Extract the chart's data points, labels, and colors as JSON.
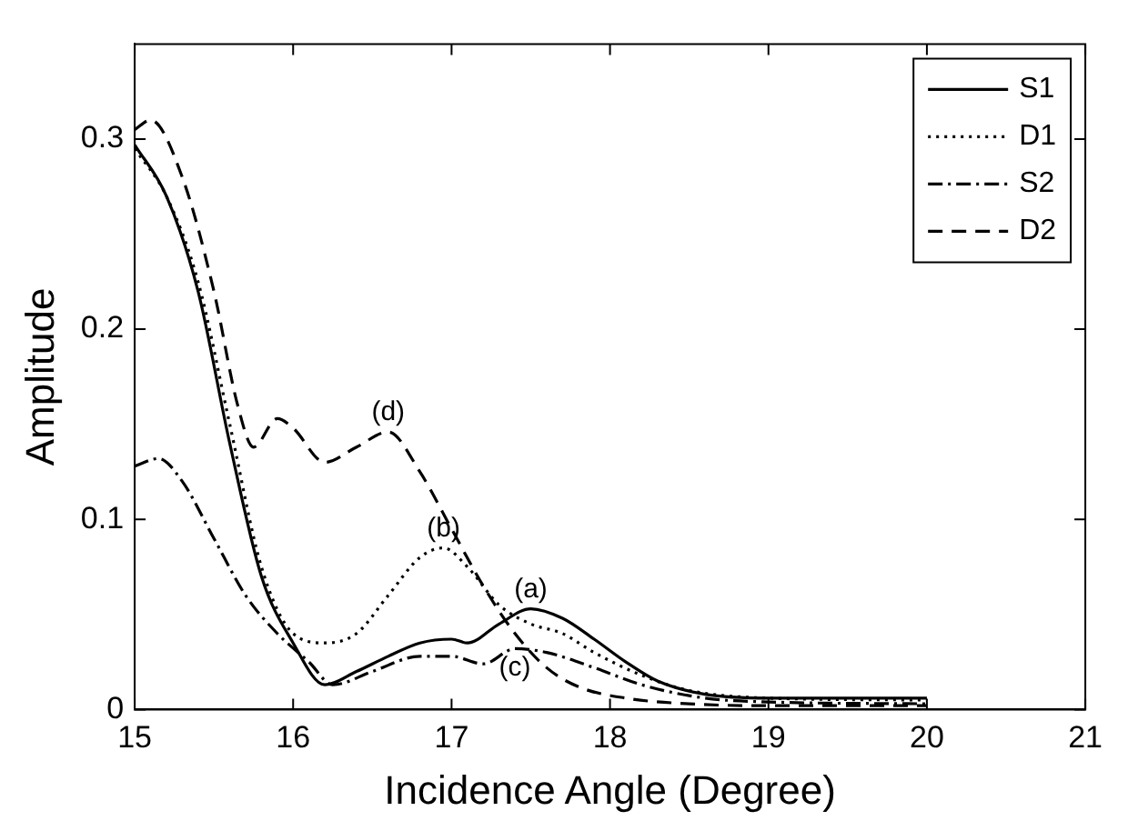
{
  "chart_data": {
    "type": "line",
    "xlabel": "Incidence Angle (Degree)",
    "ylabel": "Amplitude",
    "xlim": [
      15,
      21
    ],
    "xticks": [
      15,
      16,
      17,
      18,
      19,
      20,
      21
    ],
    "ylim": [
      0,
      0.35
    ],
    "yticks": [
      0,
      0.1,
      0.2,
      0.3
    ],
    "grid": false,
    "legend": "top right",
    "marker": "none",
    "series": [
      {
        "name": "S1",
        "color": "#000000",
        "line_style": "solid",
        "x": [
          15,
          15.2,
          15.4,
          15.6,
          15.8,
          16.0,
          16.2,
          16.4,
          16.6,
          16.8,
          17.0,
          17.1,
          17.3,
          17.5,
          17.7,
          17.9,
          18.1,
          18.3,
          18.6,
          19,
          20
        ],
        "values": [
          0.297,
          0.27,
          0.22,
          0.14,
          0.07,
          0.035,
          0.013,
          0.02,
          0.028,
          0.035,
          0.037,
          0.035,
          0.045,
          0.053,
          0.048,
          0.037,
          0.025,
          0.015,
          0.008,
          0.006,
          0.006
        ]
      },
      {
        "name": "D1",
        "color": "#000000",
        "line_style": "dotted",
        "x": [
          15,
          15.2,
          15.4,
          15.6,
          15.8,
          16.0,
          16.2,
          16.4,
          16.6,
          16.8,
          16.95,
          17.1,
          17.3,
          17.5,
          17.7,
          17.9,
          18.2,
          18.5,
          19,
          20
        ],
        "values": [
          0.295,
          0.27,
          0.225,
          0.15,
          0.075,
          0.04,
          0.035,
          0.04,
          0.06,
          0.08,
          0.085,
          0.075,
          0.055,
          0.045,
          0.04,
          0.03,
          0.018,
          0.01,
          0.006,
          0.005
        ]
      },
      {
        "name": "S2",
        "color": "#000000",
        "line_style": "dashdot",
        "x": [
          15,
          15.15,
          15.3,
          15.5,
          15.7,
          15.9,
          16.1,
          16.25,
          16.5,
          16.8,
          17.0,
          17.2,
          17.4,
          17.6,
          17.9,
          18.2,
          18.6,
          19,
          20
        ],
        "values": [
          0.128,
          0.132,
          0.12,
          0.09,
          0.06,
          0.04,
          0.025,
          0.013,
          0.02,
          0.028,
          0.028,
          0.024,
          0.032,
          0.03,
          0.022,
          0.013,
          0.006,
          0.004,
          0.003
        ]
      },
      {
        "name": "D2",
        "color": "#000000",
        "line_style": "dashed",
        "x": [
          15,
          15.1,
          15.3,
          15.5,
          15.65,
          15.75,
          15.9,
          16.0,
          16.2,
          16.4,
          16.6,
          16.8,
          17.0,
          17.2,
          17.4,
          17.6,
          17.8,
          18.1,
          18.5,
          19,
          20
        ],
        "values": [
          0.305,
          0.31,
          0.28,
          0.22,
          0.16,
          0.138,
          0.153,
          0.148,
          0.13,
          0.138,
          0.146,
          0.125,
          0.095,
          0.065,
          0.04,
          0.022,
          0.012,
          0.006,
          0.003,
          0.002,
          0.002
        ]
      }
    ],
    "annotations": [
      {
        "text": "(d)",
        "x": 16.6,
        "y": 0.146
      },
      {
        "text": "(b)",
        "x": 16.95,
        "y": 0.085
      },
      {
        "text": "(a)",
        "x": 17.5,
        "y": 0.053
      },
      {
        "text": "(c)",
        "x": 17.4,
        "y": 0.032
      }
    ]
  }
}
